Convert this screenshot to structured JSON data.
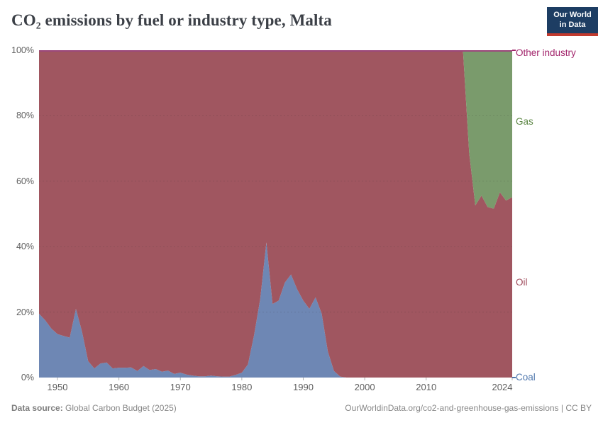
{
  "header": {
    "title": "CO₂ emissions by fuel or industry type, Malta",
    "logo": {
      "line1": "Our World",
      "line2": "in Data"
    }
  },
  "chart_data": {
    "type": "area",
    "stacked": true,
    "unit": "% share of CO₂ emissions",
    "x_domain": [
      1947,
      2024
    ],
    "y_domain": [
      0,
      100
    ],
    "grid": "dashed horizontal at 20/40/60/80%",
    "legend_position": "right edge labels",
    "x_ticks": [
      {
        "year": 1950,
        "label": "1950"
      },
      {
        "year": 1960,
        "label": "1960"
      },
      {
        "year": 1970,
        "label": "1970"
      },
      {
        "year": 1980,
        "label": "1980"
      },
      {
        "year": 1990,
        "label": "1990"
      },
      {
        "year": 2000,
        "label": "2000"
      },
      {
        "year": 2010,
        "label": "2010"
      },
      {
        "year": 2024,
        "label": "2024"
      }
    ],
    "y_ticks": [
      {
        "pct": 0,
        "label": "0%"
      },
      {
        "pct": 20,
        "label": "20%"
      },
      {
        "pct": 40,
        "label": "40%"
      },
      {
        "pct": 60,
        "label": "60%"
      },
      {
        "pct": 80,
        "label": "80%"
      },
      {
        "pct": 100,
        "label": "100%"
      }
    ],
    "series": [
      {
        "name": "Coal",
        "color": "#6e87b4",
        "label_color": "#4f77ad",
        "values": [
          19.5,
          17.5,
          15,
          13.3,
          12.7,
          12.2,
          21,
          14,
          5,
          2.8,
          4.3,
          4.6,
          2.8,
          3,
          3,
          3.1,
          2,
          3.5,
          2.3,
          2.6,
          1.8,
          2.1,
          1.1,
          1.5,
          0.9,
          0.6,
          0.4,
          0.4,
          0.6,
          0.4,
          0.3,
          0.3,
          0.8,
          1.5,
          4,
          13,
          24,
          41.3,
          22.5,
          23.5,
          29,
          31.5,
          27,
          23.5,
          21,
          24.5,
          19.5,
          8,
          2,
          0.3,
          0,
          0,
          0,
          0,
          0,
          0,
          0,
          0,
          0,
          0,
          0,
          0,
          0,
          0,
          0,
          0,
          0,
          0,
          0,
          0,
          0,
          0,
          0,
          0,
          0,
          0,
          0,
          0
        ]
      },
      {
        "name": "Oil",
        "color": "#a05660",
        "label_color": "#a04b5c",
        "values": [
          80.1,
          82.1,
          84.6,
          86.3,
          86.9,
          87.4,
          78.6,
          85.6,
          94.6,
          96.8,
          95.3,
          95,
          96.8,
          96.6,
          96.6,
          96.5,
          97.6,
          96.1,
          97.3,
          97,
          97.8,
          97.5,
          98.5,
          98.1,
          98.7,
          99,
          99.2,
          99.2,
          99,
          99.2,
          99.3,
          99.3,
          98.8,
          98.1,
          95.6,
          86.6,
          75.6,
          58.3,
          77.1,
          76.1,
          70.6,
          68.1,
          72.6,
          76.1,
          78.6,
          75.1,
          80.1,
          91.6,
          97.6,
          99.3,
          99.6,
          99.6,
          99.6,
          99.6,
          99.6,
          99.6,
          99.6,
          99.6,
          99.6,
          99.6,
          99.6,
          99.6,
          99.6,
          99.6,
          99.6,
          99.6,
          99.6,
          99.6,
          99.6,
          99.6,
          68.6,
          52.6,
          55.6,
          52.1,
          51.6,
          56.6,
          54.1,
          55.1
        ]
      },
      {
        "name": "Gas",
        "color": "#7a9b6c",
        "label_color": "#5d8745",
        "values": [
          0,
          0,
          0,
          0,
          0,
          0,
          0,
          0,
          0,
          0,
          0,
          0,
          0,
          0,
          0,
          0,
          0,
          0,
          0,
          0,
          0,
          0,
          0,
          0,
          0,
          0,
          0,
          0,
          0,
          0,
          0,
          0,
          0,
          0,
          0,
          0,
          0,
          0,
          0,
          0,
          0,
          0,
          0,
          0,
          0,
          0,
          0,
          0,
          0,
          0,
          0,
          0,
          0,
          0,
          0,
          0,
          0,
          0,
          0,
          0,
          0,
          0,
          0,
          0,
          0,
          0,
          0,
          0,
          0,
          0,
          31,
          47,
          44,
          47.5,
          48,
          43,
          45.5,
          44.5
        ]
      },
      {
        "name": "Other industry",
        "color": "#8b2a66",
        "label_color": "#a2246b",
        "values": [
          0.4,
          0.4,
          0.4,
          0.4,
          0.4,
          0.4,
          0.4,
          0.4,
          0.4,
          0.4,
          0.4,
          0.4,
          0.4,
          0.4,
          0.4,
          0.4,
          0.4,
          0.4,
          0.4,
          0.4,
          0.4,
          0.4,
          0.4,
          0.4,
          0.4,
          0.4,
          0.4,
          0.4,
          0.4,
          0.4,
          0.4,
          0.4,
          0.4,
          0.4,
          0.4,
          0.4,
          0.4,
          0.4,
          0.4,
          0.4,
          0.4,
          0.4,
          0.4,
          0.4,
          0.4,
          0.4,
          0.4,
          0.4,
          0.4,
          0.4,
          0.4,
          0.4,
          0.4,
          0.4,
          0.4,
          0.4,
          0.4,
          0.4,
          0.4,
          0.4,
          0.4,
          0.4,
          0.4,
          0.4,
          0.4,
          0.4,
          0.4,
          0.4,
          0.4,
          0.4,
          0.4,
          0.4,
          0.4,
          0.4,
          0.4,
          0.4,
          0.4,
          0.4
        ]
      }
    ]
  },
  "footer": {
    "source_label": "Data source:",
    "source_value": " Global Carbon Budget (2025)",
    "link": "OurWorldinData.org/co2-and-greenhouse-gas-emissions | CC BY"
  }
}
